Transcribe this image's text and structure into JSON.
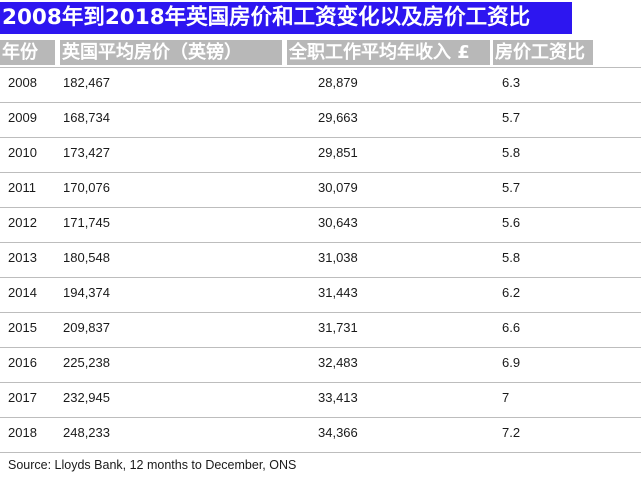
{
  "title": "2008年到2018年英国房价和工资变化以及房价工资比",
  "headers": {
    "year": "年份",
    "price": "英国平均房价（英镑）",
    "income": "全职工作平均年收入 £",
    "ratio": "房价工资比"
  },
  "rows": [
    {
      "year": "2008",
      "price": "182,467",
      "income": "28,879",
      "ratio": "6.3"
    },
    {
      "year": "2009",
      "price": "168,734",
      "income": "29,663",
      "ratio": "5.7"
    },
    {
      "year": "2010",
      "price": "173,427",
      "income": "29,851",
      "ratio": "5.8"
    },
    {
      "year": "2011",
      "price": "170,076",
      "income": "30,079",
      "ratio": "5.7"
    },
    {
      "year": "2012",
      "price": "171,745",
      "income": "30,643",
      "ratio": "5.6"
    },
    {
      "year": "2013",
      "price": "180,548",
      "income": "31,038",
      "ratio": "5.8"
    },
    {
      "year": "2014",
      "price": "194,374",
      "income": "31,443",
      "ratio": "6.2"
    },
    {
      "year": "2015",
      "price": "209,837",
      "income": "31,731",
      "ratio": "6.6"
    },
    {
      "year": "2016",
      "price": "225,238",
      "income": "32,483",
      "ratio": "6.9"
    },
    {
      "year": "2017",
      "price": "232,945",
      "income": "33,413",
      "ratio": "7"
    },
    {
      "year": "2018",
      "price": "248,233",
      "income": "34,366",
      "ratio": "7.2"
    }
  ],
  "source": "Source: Lloyds Bank, 12 months to December, ONS",
  "colors": {
    "title_background": "#2d16f0",
    "header_background": "#b8b8b8"
  }
}
